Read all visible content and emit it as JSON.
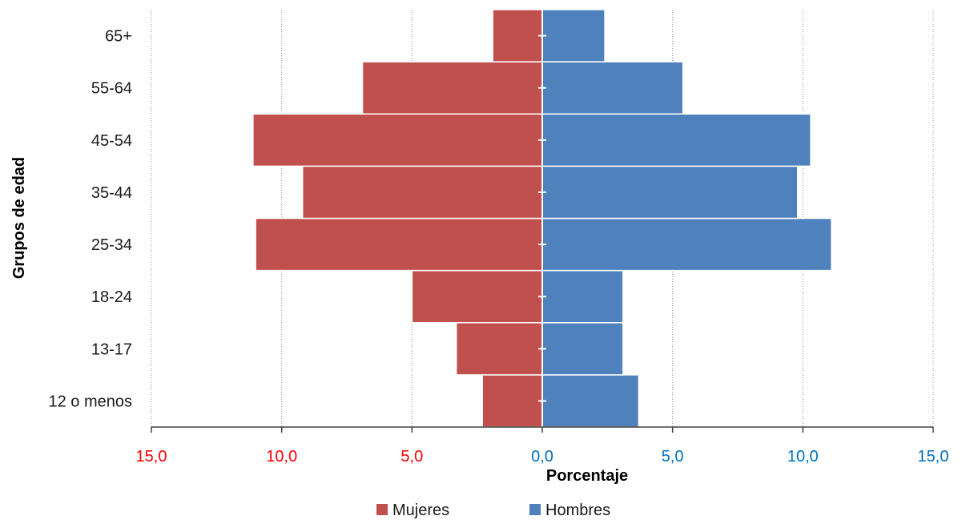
{
  "chart_data": {
    "type": "bar",
    "orientation": "horizontal-pyramid",
    "categories": [
      "12 o menos",
      "13-17",
      "18-24",
      "25-34",
      "35-44",
      "45-54",
      "55-64",
      "65+"
    ],
    "series": [
      {
        "name": "Mujeres",
        "values": [
          2.3,
          3.3,
          5.0,
          11.0,
          9.2,
          11.1,
          6.9,
          1.9
        ],
        "color": "#c0504d"
      },
      {
        "name": "Hombres",
        "values": [
          3.7,
          3.1,
          3.1,
          11.1,
          9.8,
          10.3,
          5.4,
          2.4
        ],
        "color": "#4f81bd"
      }
    ],
    "xlabel": "Porcentaje",
    "ylabel": "Grupos de edad",
    "xlim": [
      -15,
      15
    ],
    "xticks": [
      {
        "value": -15,
        "label": "15,0",
        "color": "#ff0000"
      },
      {
        "value": -10,
        "label": "10,0",
        "color": "#ff0000"
      },
      {
        "value": -5,
        "label": "5,0",
        "color": "#ff0000"
      },
      {
        "value": 0,
        "label": "0,0",
        "color": "#0070c0"
      },
      {
        "value": 5,
        "label": "5,0",
        "color": "#0070c0"
      },
      {
        "value": 10,
        "label": "10,0",
        "color": "#0070c0"
      },
      {
        "value": 15,
        "label": "15,0",
        "color": "#0070c0"
      }
    ],
    "grid": true,
    "legend_position": "bottom"
  }
}
